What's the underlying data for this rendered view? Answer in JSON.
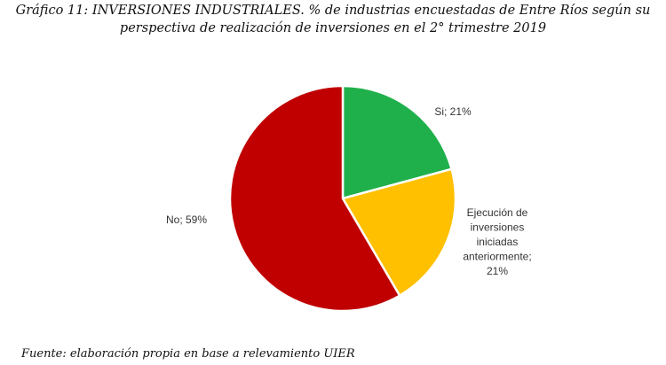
{
  "header": {
    "title_line1": "Gráfico 11: INVERSIONES INDUSTRIALES. % de industrias encuestadas de Entre Ríos según su",
    "title_line2": "perspectiva de realización de inversiones en el 2° trimestre 2019"
  },
  "footer": {
    "source": "Fuente: elaboración propia en base a relevamiento UIER"
  },
  "chart_data": {
    "type": "pie",
    "title": "Gráfico 11: INVERSIONES INDUSTRIALES. % de industrias encuestadas de Entre Ríos según su perspectiva de realización de inversiones en el 2° trimestre 2019",
    "start_angle_deg": 0,
    "direction": "clockwise",
    "slices": [
      {
        "label": "Si",
        "value": 21,
        "color": "#1fb04b",
        "label_lines": [
          "Si; 21%"
        ]
      },
      {
        "label": "Ejecución de inversiones iniciadas anteriormente",
        "value": 21,
        "color": "#ffc000",
        "label_lines": [
          "Ejecución de",
          "inversiones",
          "iniciadas",
          "anteriormente;",
          "21%"
        ]
      },
      {
        "label": "No",
        "value": 59,
        "color": "#c00000",
        "label_lines": [
          "No; 59%"
        ]
      }
    ],
    "legend": "none",
    "data_labels": "outside"
  }
}
